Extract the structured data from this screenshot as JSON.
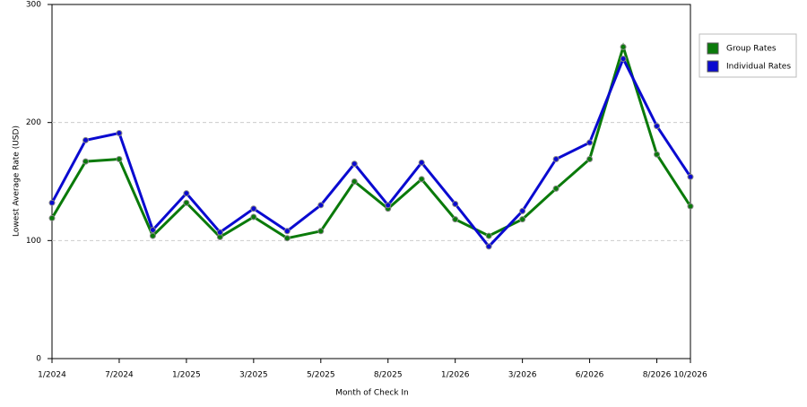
{
  "chart_data": {
    "type": "line",
    "x_label": "Month of Check In",
    "y_label": "Lowest Average Rate (USD)",
    "categories": [
      "1/2024",
      null,
      "7/2024",
      null,
      "1/2025",
      null,
      "3/2025",
      null,
      "5/2025",
      null,
      "8/2025",
      null,
      "1/2026",
      null,
      "3/2026",
      null,
      "6/2026",
      null,
      "8/2026",
      "10/2026"
    ],
    "series": [
      {
        "name": "Group Rates",
        "color": "#0a7a0a",
        "values": [
          119,
          167,
          169,
          104,
          132,
          103,
          120,
          102,
          108,
          150,
          127,
          152,
          118,
          104,
          118,
          144,
          169,
          264,
          173,
          129
        ]
      },
      {
        "name": "Individual Rates",
        "color": "#0a0ad0",
        "values": [
          132,
          185,
          191,
          109,
          140,
          107,
          127,
          108,
          130,
          165,
          130,
          166,
          131,
          95,
          125,
          169,
          183,
          254,
          197,
          154
        ]
      }
    ],
    "ylim": [
      0,
      300
    ],
    "yticks": [
      0,
      100,
      200,
      300
    ],
    "grid": true,
    "legend": "right"
  }
}
